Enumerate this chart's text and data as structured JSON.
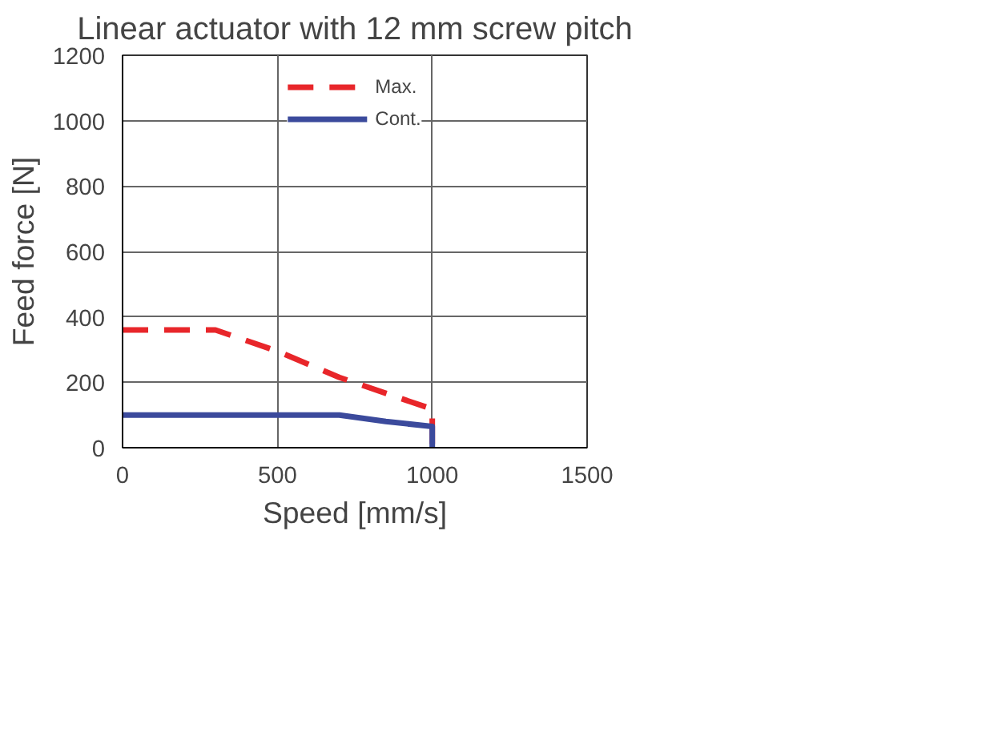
{
  "chart_data": {
    "type": "line",
    "title": "Linear actuator with 12 mm screw pitch",
    "xlabel": "Speed [mm/s]",
    "ylabel": "Feed force [N]",
    "xlim": [
      0,
      1500
    ],
    "xticks": [
      0,
      500,
      1000,
      1500
    ],
    "ylim": [
      0,
      1200
    ],
    "yticks": [
      0,
      200,
      400,
      600,
      800,
      1000,
      1200
    ],
    "grid": true,
    "legend": "top",
    "series": [
      {
        "name": "Max.",
        "color": "#e8262a",
        "line_style": "dashed",
        "x": [
          0,
          300,
          500,
          700,
          900,
          1000,
          1000
        ],
        "values": [
          360,
          360,
          295,
          215,
          150,
          118,
          0
        ]
      },
      {
        "name": "Cont.",
        "color": "#3b4a9c",
        "line_style": "solid",
        "x": [
          0,
          700,
          850,
          1000,
          1000
        ],
        "values": [
          100,
          100,
          80,
          65,
          0
        ]
      }
    ]
  }
}
